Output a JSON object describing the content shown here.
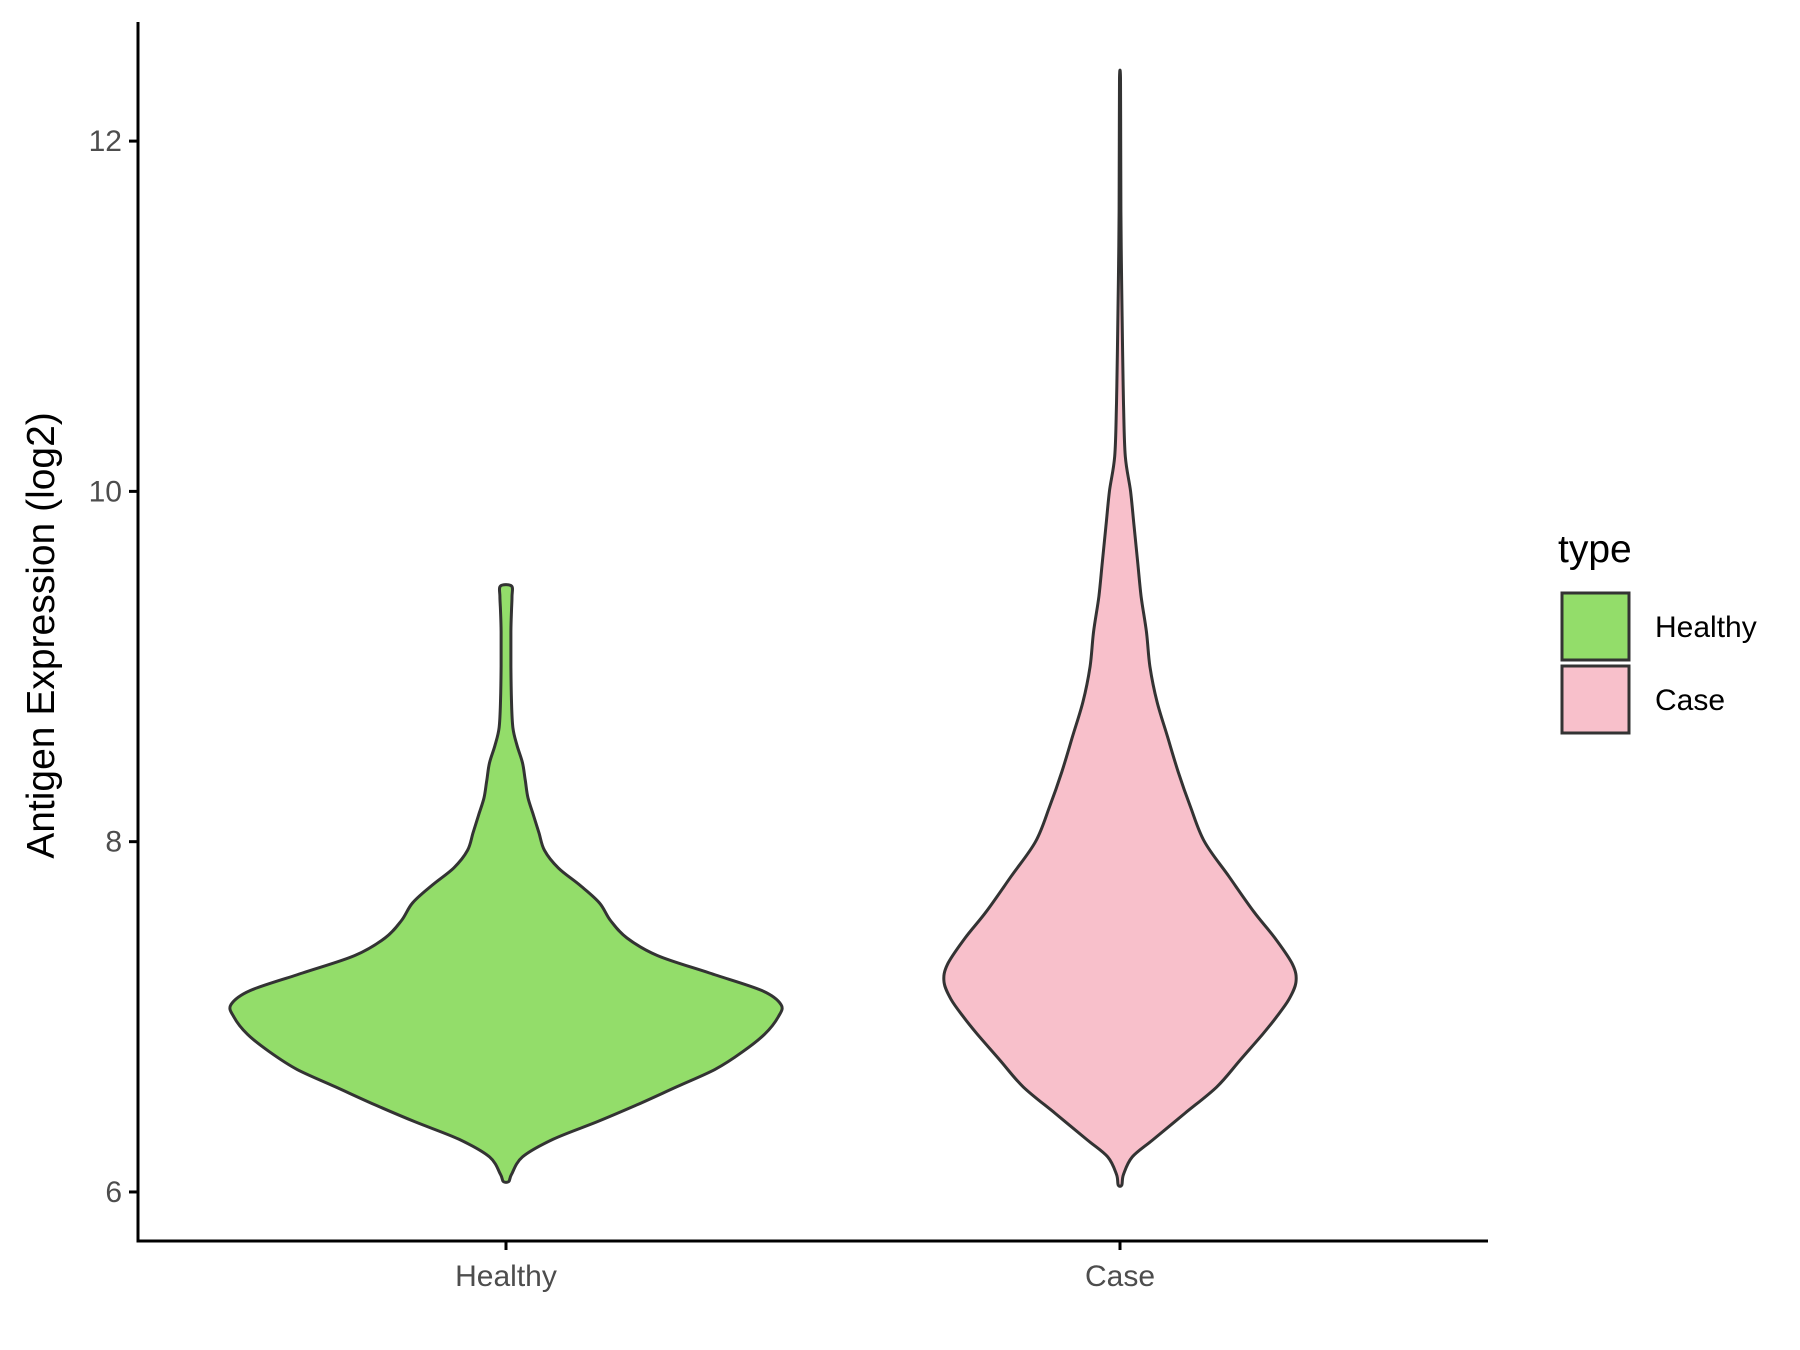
{
  "chart_data": {
    "type": "violin",
    "categories": [
      "Healthy",
      "Case"
    ],
    "ylabel": "Antigen Expression (log2)",
    "xlabel": "",
    "ylim": [
      5.72,
      12.68
    ],
    "yticks": [
      6,
      8,
      10,
      12
    ],
    "ytick_labels": [
      "6",
      "8",
      "10",
      "12"
    ],
    "grid": false,
    "legend": {
      "title": "type",
      "placement": "right",
      "entries": [
        {
          "label": "Healthy",
          "color": "#93dd6a"
        },
        {
          "label": "Case",
          "color": "#f8c0cb"
        }
      ]
    },
    "series": [
      {
        "category": "Healthy",
        "color": "#93dd6a",
        "y_range": [
          6.06,
          9.46
        ],
        "density_profile": [
          [
            6.06,
            0.01
          ],
          [
            6.1,
            0.02
          ],
          [
            6.2,
            0.06
          ],
          [
            6.3,
            0.17
          ],
          [
            6.4,
            0.33
          ],
          [
            6.5,
            0.48
          ],
          [
            6.6,
            0.62
          ],
          [
            6.7,
            0.76
          ],
          [
            6.8,
            0.86
          ],
          [
            6.9,
            0.94
          ],
          [
            7.0,
            0.99
          ],
          [
            7.07,
            1.0
          ],
          [
            7.15,
            0.93
          ],
          [
            7.25,
            0.74
          ],
          [
            7.35,
            0.55
          ],
          [
            7.45,
            0.44
          ],
          [
            7.55,
            0.38
          ],
          [
            7.65,
            0.34
          ],
          [
            7.75,
            0.27
          ],
          [
            7.85,
            0.19
          ],
          [
            7.95,
            0.14
          ],
          [
            8.05,
            0.12
          ],
          [
            8.15,
            0.1
          ],
          [
            8.25,
            0.08
          ],
          [
            8.35,
            0.07
          ],
          [
            8.45,
            0.06
          ],
          [
            8.55,
            0.04
          ],
          [
            8.65,
            0.025
          ],
          [
            8.8,
            0.02
          ],
          [
            9.0,
            0.018
          ],
          [
            9.2,
            0.018
          ],
          [
            9.32,
            0.02
          ],
          [
            9.4,
            0.022
          ],
          [
            9.46,
            0.02
          ]
        ]
      },
      {
        "category": "Case",
        "color": "#f8c0cb",
        "y_range": [
          6.04,
          12.36
        ],
        "density_profile": [
          [
            6.04,
            0.01
          ],
          [
            6.1,
            0.02
          ],
          [
            6.2,
            0.07
          ],
          [
            6.3,
            0.19
          ],
          [
            6.45,
            0.37
          ],
          [
            6.6,
            0.55
          ],
          [
            6.75,
            0.68
          ],
          [
            6.9,
            0.81
          ],
          [
            7.0,
            0.89
          ],
          [
            7.1,
            0.96
          ],
          [
            7.2,
            1.0
          ],
          [
            7.3,
            0.98
          ],
          [
            7.45,
            0.88
          ],
          [
            7.6,
            0.76
          ],
          [
            7.8,
            0.62
          ],
          [
            8.0,
            0.48
          ],
          [
            8.2,
            0.4
          ],
          [
            8.4,
            0.33
          ],
          [
            8.6,
            0.27
          ],
          [
            8.8,
            0.21
          ],
          [
            9.0,
            0.17
          ],
          [
            9.2,
            0.15
          ],
          [
            9.4,
            0.12
          ],
          [
            9.6,
            0.1
          ],
          [
            9.8,
            0.08
          ],
          [
            10.0,
            0.06
          ],
          [
            10.2,
            0.03
          ],
          [
            10.5,
            0.02
          ],
          [
            10.8,
            0.015
          ],
          [
            11.0,
            0.012
          ],
          [
            11.3,
            0.008
          ],
          [
            11.6,
            0.005
          ],
          [
            12.0,
            0.004
          ],
          [
            12.36,
            0.003
          ]
        ]
      }
    ]
  }
}
